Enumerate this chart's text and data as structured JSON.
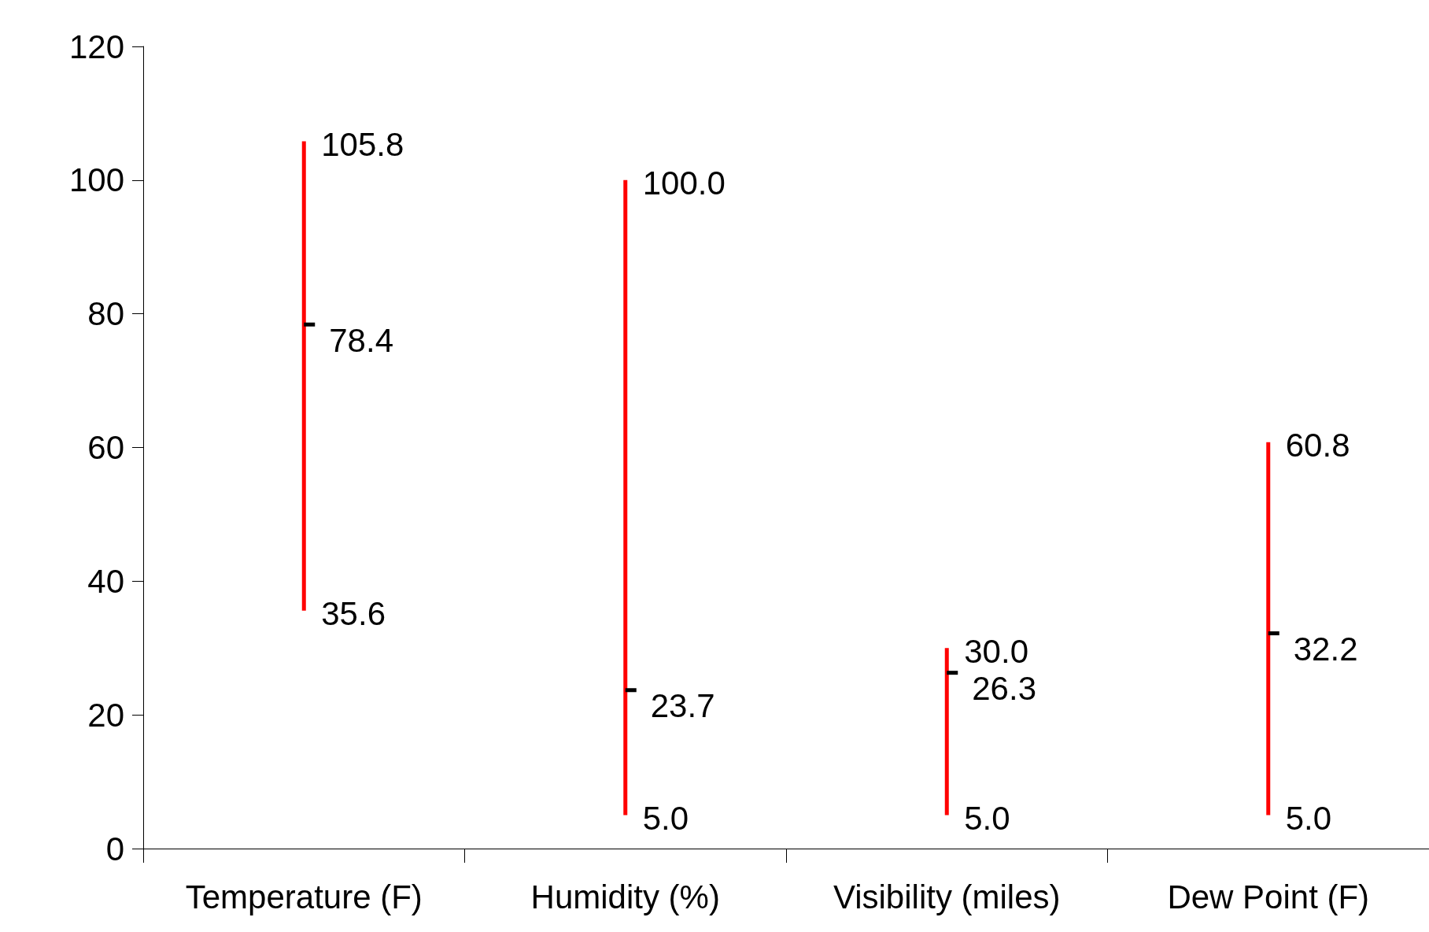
{
  "chart_data": {
    "type": "scatter",
    "categories": [
      "Temperature (F)",
      "Humidity (%)",
      "Visibility (miles)",
      "Dew Point (F)"
    ],
    "series": [
      {
        "type": "bar",
        "color": "#ff0000",
        "base": [
          35.6,
          5.0,
          5.0,
          5.0
        ],
        "values": [
          70.2,
          95.0,
          25.0,
          55.8
        ]
      },
      {
        "color": "#000000",
        "values": [
          78.4,
          23.7,
          26.3,
          32.2
        ],
        "value_labels": [
          "78.4",
          "23.7",
          "26.3",
          "32.2"
        ]
      }
    ],
    "annotations": [
      {
        "text": "105.8",
        "x": "Temperature (F)",
        "y": 105.8
      },
      {
        "text": "35.6",
        "x": "Temperature (F)",
        "y": 35.6
      },
      {
        "text": "100.0",
        "x": "Humidity (%)",
        "y": 100.0
      },
      {
        "text": "5.0",
        "x": "Humidity (%)",
        "y": 5.0
      },
      {
        "text": "30.0",
        "x": "Visibility (miles)",
        "y": 30.0
      },
      {
        "text": "5.0",
        "x": "Visibility (miles)",
        "y": 5.0
      },
      {
        "text": "60.8",
        "x": "Dew Point (F)",
        "y": 60.8
      },
      {
        "text": "5.0",
        "x": "Dew Point (F)",
        "y": 5.0
      }
    ],
    "ylim": [
      0,
      120
    ],
    "yticks": [
      0,
      20,
      40,
      60,
      80,
      100,
      120
    ],
    "grid": false
  }
}
